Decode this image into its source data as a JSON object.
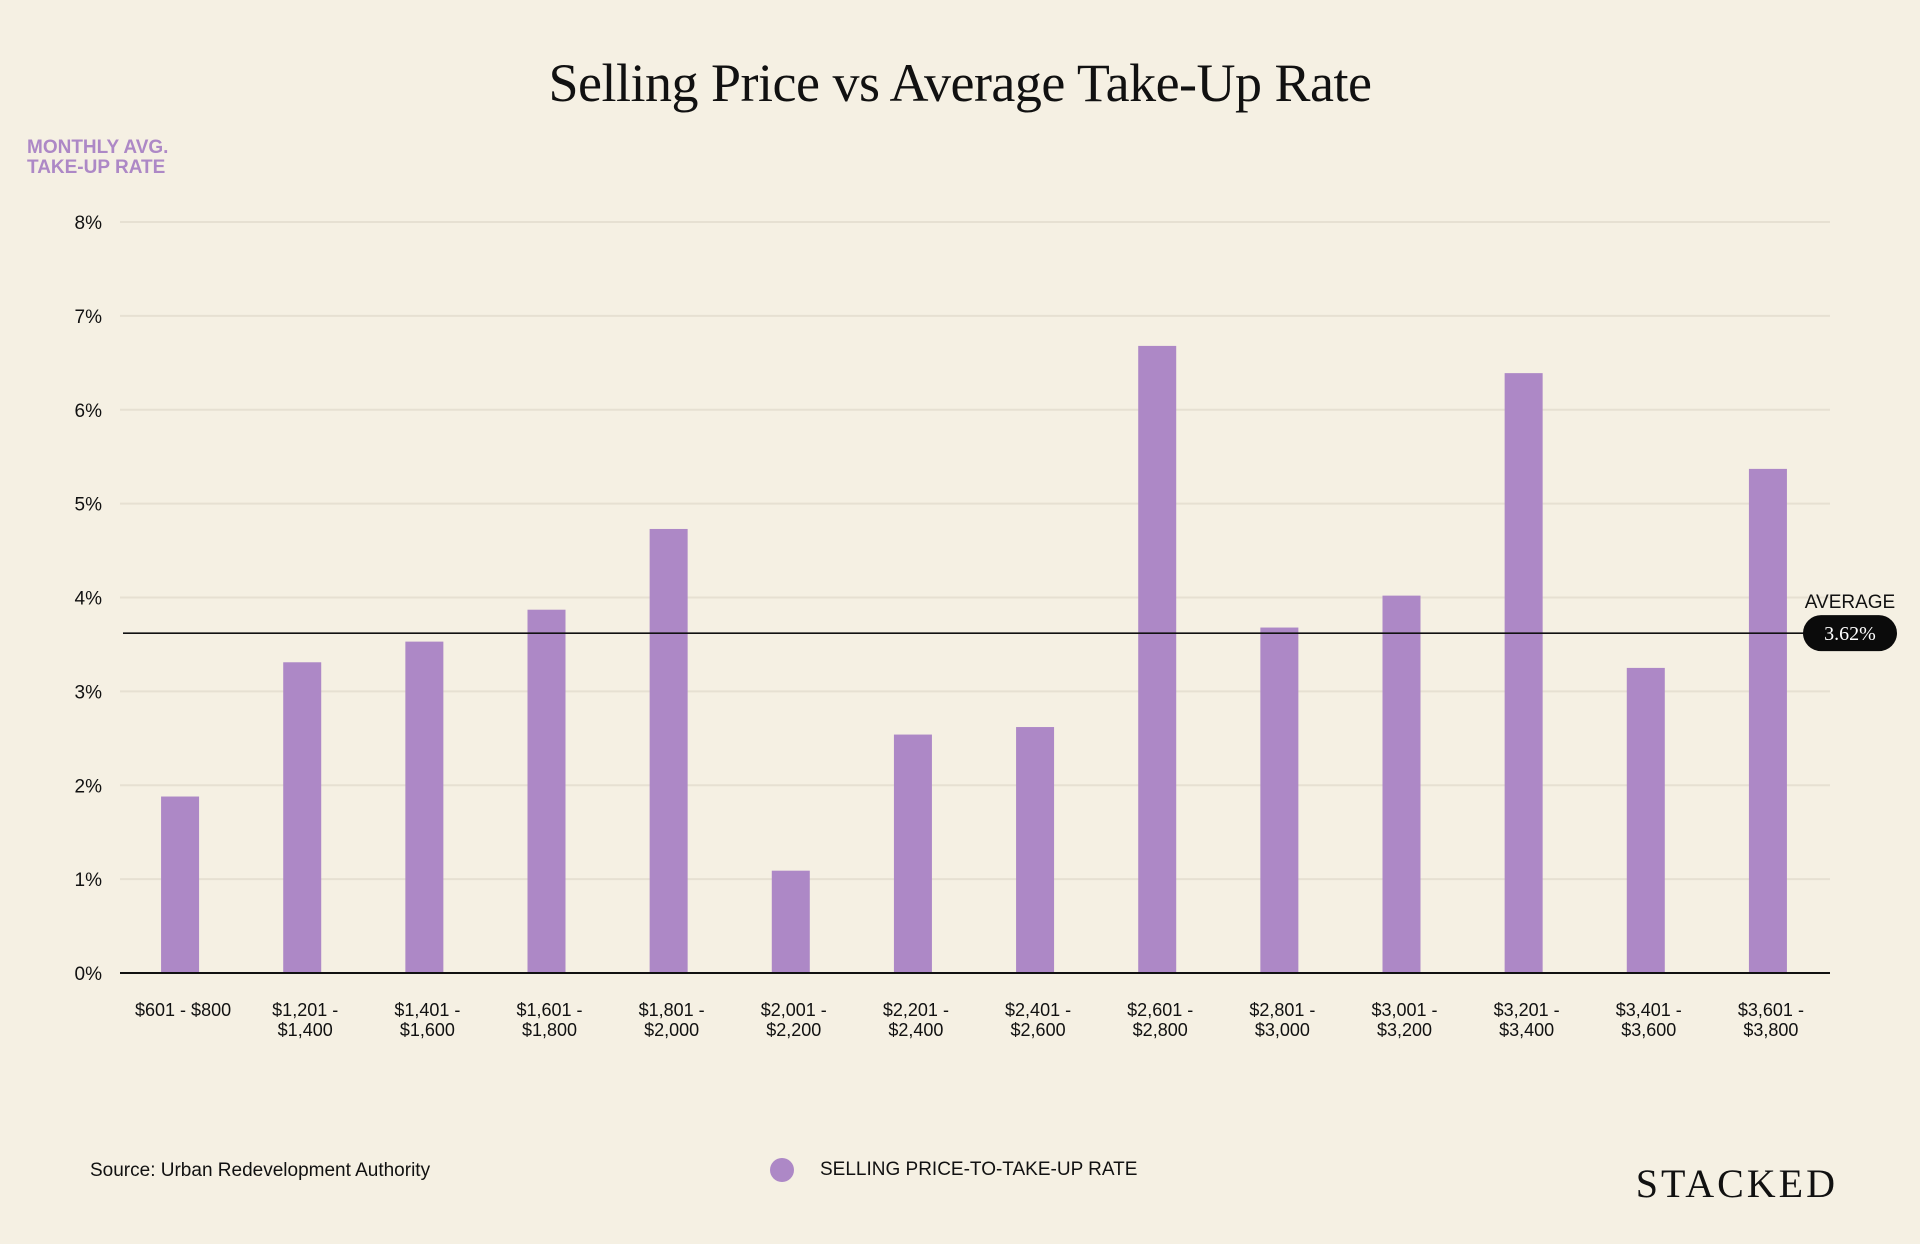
{
  "chart_data": {
    "type": "bar",
    "title": "Selling Price vs Average Take-Up Rate",
    "ylabel": "MONTHLY AVG. TAKE-UP RATE",
    "ylim": [
      0,
      8
    ],
    "yticks": [
      "0%",
      "1%",
      "2%",
      "3%",
      "4%",
      "5%",
      "6%",
      "7%",
      "8%"
    ],
    "categories": [
      [
        "$601 - $800"
      ],
      [
        "$1,201 -",
        "$1,400"
      ],
      [
        "$1,401 -",
        "$1,600"
      ],
      [
        "$1,601 -",
        "$1,800"
      ],
      [
        "$1,801 -",
        "$2,000"
      ],
      [
        "$2,001 -",
        "$2,200"
      ],
      [
        "$2,201 -",
        "$2,400"
      ],
      [
        "$2,401 -",
        "$2,600"
      ],
      [
        "$2,601 -",
        "$2,800"
      ],
      [
        "$2,801 -",
        "$3,000"
      ],
      [
        "$3,001 -",
        "$3,200"
      ],
      [
        "$3,201 -",
        "$3,400"
      ],
      [
        "$3,401 -",
        "$3,600"
      ],
      [
        "$3,601 -",
        "$3,800"
      ]
    ],
    "series": [
      {
        "name": "SELLING PRICE-TO-TAKE-UP RATE",
        "color": "#ad88c6",
        "values": [
          1.88,
          3.31,
          3.53,
          3.87,
          4.73,
          1.09,
          2.54,
          2.62,
          6.68,
          3.68,
          4.02,
          6.39,
          3.25,
          5.37
        ]
      }
    ],
    "reference_line": {
      "label": "AVERAGE",
      "value": 3.62,
      "value_label": "3.62%"
    },
    "grid": true,
    "legend_position": "bottom-center"
  },
  "source": "Source: Urban Redevelopment Authority",
  "brand": "STACKED",
  "colors": {
    "background": "#f5f0e3",
    "bar": "#ad88c6",
    "text": "#111111",
    "grid": "#e6e0d2"
  }
}
